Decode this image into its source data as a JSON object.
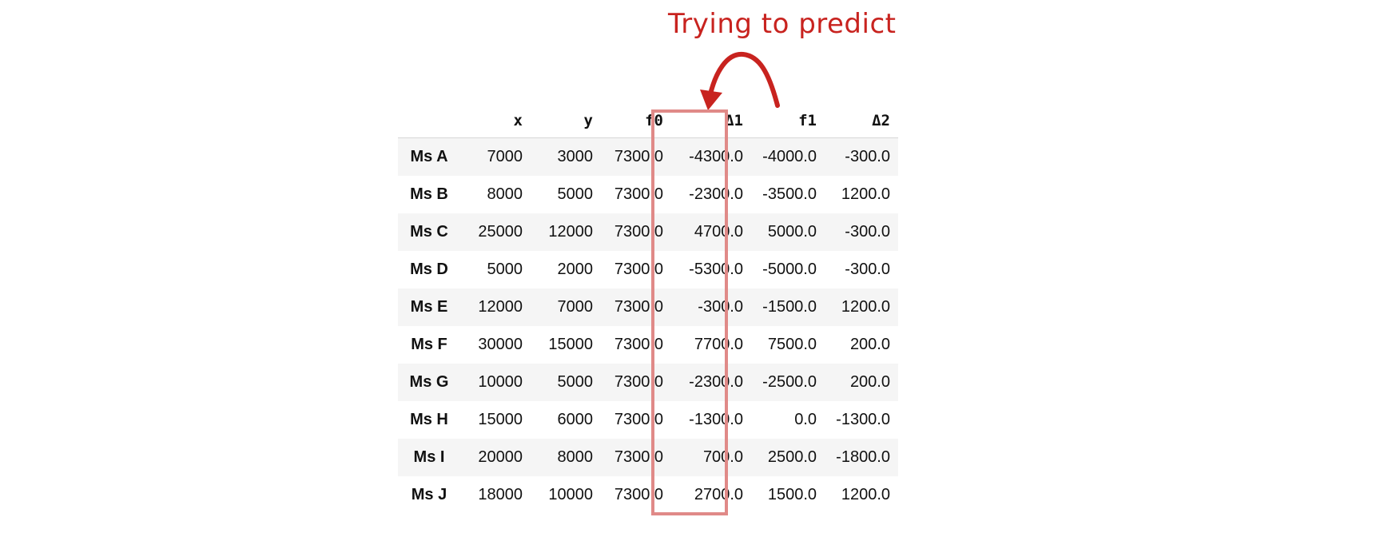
{
  "annotation": {
    "text": "Trying to predict",
    "color": "#c8231f",
    "box_color": "#e08a88"
  },
  "table": {
    "columns": [
      "x",
      "y",
      "f0",
      "Δ1",
      "f1",
      "Δ2"
    ],
    "rows": [
      {
        "index": "Ms A",
        "values": [
          "7000",
          "3000",
          "7300.0",
          "-4300.0",
          "-4000.0",
          "-300.0"
        ]
      },
      {
        "index": "Ms B",
        "values": [
          "8000",
          "5000",
          "7300.0",
          "-2300.0",
          "-3500.0",
          "1200.0"
        ]
      },
      {
        "index": "Ms C",
        "values": [
          "25000",
          "12000",
          "7300.0",
          "4700.0",
          "5000.0",
          "-300.0"
        ]
      },
      {
        "index": "Ms D",
        "values": [
          "5000",
          "2000",
          "7300.0",
          "-5300.0",
          "-5000.0",
          "-300.0"
        ]
      },
      {
        "index": "Ms E",
        "values": [
          "12000",
          "7000",
          "7300.0",
          "-300.0",
          "-1500.0",
          "1200.0"
        ]
      },
      {
        "index": "Ms F",
        "values": [
          "30000",
          "15000",
          "7300.0",
          "7700.0",
          "7500.0",
          "200.0"
        ]
      },
      {
        "index": "Ms G",
        "values": [
          "10000",
          "5000",
          "7300.0",
          "-2300.0",
          "-2500.0",
          "200.0"
        ]
      },
      {
        "index": "Ms H",
        "values": [
          "15000",
          "6000",
          "7300.0",
          "-1300.0",
          "0.0",
          "-1300.0"
        ]
      },
      {
        "index": "Ms I",
        "values": [
          "20000",
          "8000",
          "7300.0",
          "700.0",
          "2500.0",
          "-1800.0"
        ]
      },
      {
        "index": "Ms J",
        "values": [
          "18000",
          "10000",
          "7300.0",
          "2700.0",
          "1500.0",
          "1200.0"
        ]
      }
    ]
  }
}
